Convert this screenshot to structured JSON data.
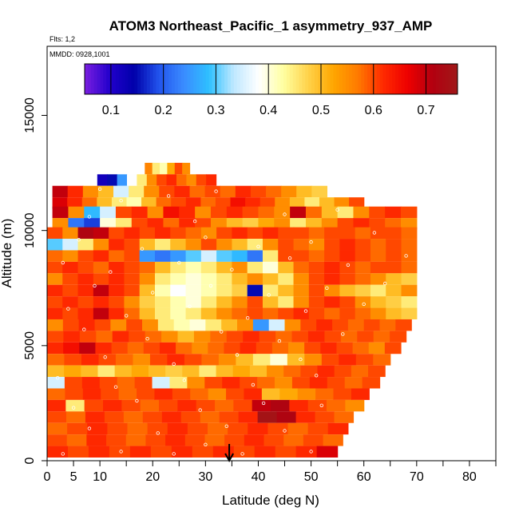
{
  "chart_data": {
    "type": "heatmap",
    "title": "ATOM3 Northeast_Pacific_1 asymmetry_937_AMP",
    "subtitle_flights": "Flts: 1,2",
    "subtitle_dates": "MMDD: 0928,1001",
    "xlabel": "Latitude (deg N)",
    "ylabel": "Altitude (m)",
    "xlim": [
      0,
      85
    ],
    "ylim": [
      0,
      18000
    ],
    "x_ticks": [
      0,
      5,
      10,
      20,
      30,
      40,
      50,
      60,
      70,
      80
    ],
    "x_minor_ticks": [
      15,
      25,
      35,
      45,
      55,
      65,
      75,
      85
    ],
    "y_ticks": [
      0,
      5000,
      10000,
      15000
    ],
    "colorbar": {
      "vmin": 0.05,
      "vmax": 0.76,
      "ticks": [
        0.1,
        0.2,
        0.3,
        0.4,
        0.5,
        0.6,
        0.7
      ],
      "tick_labels": [
        "0.1",
        "0.2",
        "0.3",
        "0.4",
        "0.5",
        "0.6",
        "0.7"
      ],
      "colors": [
        "#7a1fe0",
        "#2200cc",
        "#0000aa",
        "#2255ee",
        "#3a8cff",
        "#2ec0ff",
        "#bfe8ff",
        "#ffffff",
        "#ffffa0",
        "#ffd24a",
        "#ffa600",
        "#ff7a00",
        "#ff2a00",
        "#ee0000",
        "#b20010",
        "#a01818"
      ]
    },
    "marker": {
      "x": 34.5,
      "label": "arrow"
    },
    "layers": [
      {
        "alt": 12700,
        "xmin": 18.5,
        "xmax": 27,
        "values": [
          0.56,
          0.45,
          0.42,
          0.52,
          0.6,
          0.55
        ]
      },
      {
        "alt": 12200,
        "xmin": 9.5,
        "xmax": 32,
        "values": [
          0.12,
          0.15,
          0.25,
          0.38,
          0.45,
          0.55,
          0.6,
          0.62,
          0.58,
          0.55,
          0.6,
          0.62
        ]
      },
      {
        "alt": 11700,
        "xmin": 1,
        "xmax": 53,
        "values": [
          0.7,
          0.62,
          0.55,
          0.5,
          0.35,
          0.45,
          0.55,
          0.6,
          0.62,
          0.58,
          0.6,
          0.58,
          0.62,
          0.6,
          0.58,
          0.55,
          0.5,
          0.48
        ]
      },
      {
        "alt": 11200,
        "xmin": 1,
        "xmax": 60,
        "values": [
          0.68,
          0.62,
          0.58,
          0.5,
          0.45,
          0.42,
          0.5,
          0.58,
          0.6,
          0.62,
          0.58,
          0.6,
          0.65,
          0.62,
          0.6,
          0.55,
          0.5,
          0.45,
          0.5,
          0.55,
          0.6
        ]
      },
      {
        "alt": 10800,
        "xmin": 1,
        "xmax": 70,
        "values": [
          0.7,
          0.55,
          0.28,
          0.35,
          0.6,
          0.62,
          0.55,
          0.65,
          0.62,
          0.55,
          0.6,
          0.62,
          0.6,
          0.58,
          0.55,
          0.7,
          0.58,
          0.5,
          0.45,
          0.55,
          0.6,
          0.62,
          0.6
        ]
      },
      {
        "alt": 10300,
        "xmin": 1,
        "xmax": 70,
        "values": [
          0.55,
          0.22,
          0.18,
          0.4,
          0.45,
          0.6,
          0.62,
          0.58,
          0.62,
          0.6,
          0.55,
          0.5,
          0.48,
          0.52,
          0.55,
          0.45,
          0.5,
          0.55,
          0.6,
          0.62,
          0.6,
          0.58,
          0.55
        ]
      },
      {
        "alt": 9900,
        "xmin": 0,
        "xmax": 70,
        "values": [
          0.6,
          0.55,
          0.72,
          0.7,
          0.6,
          0.62,
          0.6,
          0.62,
          0.6,
          0.58,
          0.55,
          0.6,
          0.62,
          0.6,
          0.62,
          0.6,
          0.6,
          0.58,
          0.6,
          0.6,
          0.58,
          0.6,
          0.6,
          0.58
        ]
      },
      {
        "alt": 9400,
        "xmin": 0,
        "xmax": 70,
        "values": [
          0.3,
          0.35,
          0.45,
          0.55,
          0.62,
          0.6,
          0.5,
          0.45,
          0.5,
          0.55,
          0.6,
          0.55,
          0.5,
          0.45,
          0.55,
          0.6,
          0.58,
          0.55,
          0.6,
          0.62,
          0.6,
          0.58,
          0.6,
          0.58
        ]
      },
      {
        "alt": 8900,
        "xmin": 0,
        "xmax": 70,
        "values": [
          0.58,
          0.55,
          0.6,
          0.62,
          0.58,
          0.6,
          0.25,
          0.22,
          0.25,
          0.3,
          0.35,
          0.3,
          0.28,
          0.22,
          0.45,
          0.6,
          0.6,
          0.58,
          0.6,
          0.62,
          0.6,
          0.58,
          0.6,
          0.58
        ]
      },
      {
        "alt": 8400,
        "xmin": 0,
        "xmax": 70,
        "values": [
          0.6,
          0.62,
          0.6,
          0.58,
          0.62,
          0.6,
          0.58,
          0.5,
          0.45,
          0.42,
          0.45,
          0.5,
          0.55,
          0.45,
          0.4,
          0.5,
          0.58,
          0.6,
          0.62,
          0.6,
          0.58,
          0.6,
          0.6,
          0.58
        ]
      },
      {
        "alt": 7900,
        "xmin": 0,
        "xmax": 70,
        "values": [
          0.55,
          0.6,
          0.62,
          0.6,
          0.62,
          0.6,
          0.55,
          0.45,
          0.42,
          0.4,
          0.42,
          0.45,
          0.5,
          0.55,
          0.5,
          0.45,
          0.55,
          0.6,
          0.62,
          0.6,
          0.58,
          0.55,
          0.5,
          0.48
        ]
      },
      {
        "alt": 7400,
        "xmin": 0,
        "xmax": 70,
        "values": [
          0.62,
          0.6,
          0.62,
          0.7,
          0.62,
          0.6,
          0.5,
          0.42,
          0.38,
          0.4,
          0.42,
          0.45,
          0.48,
          0.15,
          0.45,
          0.5,
          0.55,
          0.6,
          0.55,
          0.5,
          0.48,
          0.45,
          0.5,
          0.55
        ]
      },
      {
        "alt": 6900,
        "xmin": 0,
        "xmax": 70,
        "values": [
          0.6,
          0.62,
          0.6,
          0.62,
          0.6,
          0.55,
          0.48,
          0.45,
          0.42,
          0.4,
          0.45,
          0.5,
          0.55,
          0.6,
          0.5,
          0.45,
          0.55,
          0.6,
          0.62,
          0.6,
          0.55,
          0.5,
          0.48,
          0.45
        ]
      },
      {
        "alt": 6400,
        "xmin": 0,
        "xmax": 70,
        "values": [
          0.62,
          0.6,
          0.62,
          0.7,
          0.62,
          0.58,
          0.5,
          0.45,
          0.42,
          0.45,
          0.5,
          0.55,
          0.58,
          0.6,
          0.58,
          0.6,
          0.62,
          0.6,
          0.58,
          0.6,
          0.58,
          0.55,
          0.5,
          0.48
        ]
      },
      {
        "alt": 5900,
        "xmin": 0,
        "xmax": 69,
        "values": [
          0.55,
          0.6,
          0.62,
          0.6,
          0.55,
          0.6,
          0.55,
          0.45,
          0.42,
          0.4,
          0.45,
          0.5,
          0.55,
          0.25,
          0.35,
          0.55,
          0.6,
          0.62,
          0.6,
          0.58,
          0.6,
          0.58,
          0.6
        ]
      },
      {
        "alt": 5400,
        "xmin": 0,
        "xmax": 68,
        "values": [
          0.6,
          0.62,
          0.6,
          0.58,
          0.62,
          0.6,
          0.58,
          0.55,
          0.5,
          0.55,
          0.58,
          0.6,
          0.62,
          0.6,
          0.58,
          0.6,
          0.62,
          0.6,
          0.58,
          0.6,
          0.58,
          0.6
        ]
      },
      {
        "alt": 4900,
        "xmin": 0,
        "xmax": 67,
        "values": [
          0.62,
          0.65,
          0.7,
          0.62,
          0.6,
          0.58,
          0.6,
          0.62,
          0.58,
          0.55,
          0.58,
          0.6,
          0.62,
          0.6,
          0.58,
          0.55,
          0.6,
          0.62,
          0.6,
          0.58,
          0.55,
          0.6
        ]
      },
      {
        "alt": 4400,
        "xmin": 0,
        "xmax": 65,
        "values": [
          0.58,
          0.6,
          0.62,
          0.6,
          0.58,
          0.55,
          0.6,
          0.62,
          0.6,
          0.58,
          0.55,
          0.5,
          0.45,
          0.4,
          0.5,
          0.55,
          0.6,
          0.62,
          0.6,
          0.58
        ]
      },
      {
        "alt": 3900,
        "xmin": 0,
        "xmax": 64,
        "values": [
          0.5,
          0.52,
          0.5,
          0.45,
          0.5,
          0.52,
          0.5,
          0.48,
          0.5,
          0.45,
          0.5,
          0.52,
          0.5,
          0.55,
          0.58,
          0.6,
          0.62,
          0.6,
          0.58,
          0.6
        ]
      },
      {
        "alt": 3400,
        "xmin": 0,
        "xmax": 63,
        "values": [
          0.35,
          0.6,
          0.62,
          0.6,
          0.58,
          0.6,
          0.35,
          0.45,
          0.55,
          0.6,
          0.62,
          0.6,
          0.58,
          0.55,
          0.6,
          0.62,
          0.6,
          0.58,
          0.6
        ]
      },
      {
        "alt": 2900,
        "xmin": 0,
        "xmax": 61,
        "values": [
          0.58,
          0.6,
          0.62,
          0.6,
          0.58,
          0.6,
          0.62,
          0.6,
          0.58,
          0.55,
          0.6,
          0.62,
          0.5,
          0.52,
          0.55,
          0.58,
          0.6,
          0.62
        ]
      },
      {
        "alt": 2400,
        "xmin": 0,
        "xmax": 60,
        "values": [
          0.62,
          0.45,
          0.6,
          0.62,
          0.6,
          0.58,
          0.6,
          0.62,
          0.6,
          0.58,
          0.6,
          0.7,
          0.72,
          0.62,
          0.6,
          0.58,
          0.55
        ]
      },
      {
        "alt": 1900,
        "xmin": 0,
        "xmax": 58,
        "values": [
          0.6,
          0.58,
          0.62,
          0.6,
          0.58,
          0.6,
          0.62,
          0.6,
          0.58,
          0.6,
          0.62,
          0.75,
          0.72,
          0.62,
          0.6,
          0.58
        ]
      },
      {
        "alt": 1400,
        "xmin": 0,
        "xmax": 57,
        "values": [
          0.58,
          0.6,
          0.62,
          0.6,
          0.58,
          0.6,
          0.62,
          0.6,
          0.58,
          0.6,
          0.62,
          0.6,
          0.58,
          0.6,
          0.62
        ]
      },
      {
        "alt": 900,
        "xmin": 0,
        "xmax": 56,
        "values": [
          0.6,
          0.58,
          0.62,
          0.6,
          0.58,
          0.6,
          0.62,
          0.6,
          0.58,
          0.6,
          0.62,
          0.6,
          0.58,
          0.6,
          0.58
        ]
      },
      {
        "alt": 400,
        "xmin": 0,
        "xmax": 55,
        "values": [
          0.62,
          0.6,
          0.62,
          0.6,
          0.62,
          0.6,
          0.62,
          0.6,
          0.62,
          0.6,
          0.62,
          0.6,
          0.62,
          0.68
        ]
      }
    ],
    "samples": [
      [
        10,
        11800
      ],
      [
        14,
        11300
      ],
      [
        23,
        11500
      ],
      [
        32,
        11700
      ],
      [
        8,
        10600
      ],
      [
        28,
        10400
      ],
      [
        45,
        10700
      ],
      [
        55,
        10900
      ],
      [
        6,
        9600
      ],
      [
        18,
        9200
      ],
      [
        30,
        9700
      ],
      [
        40,
        9300
      ],
      [
        50,
        9500
      ],
      [
        62,
        9900
      ],
      [
        3,
        8600
      ],
      [
        12,
        8200
      ],
      [
        25,
        8600
      ],
      [
        35,
        8300
      ],
      [
        46,
        8800
      ],
      [
        57,
        8500
      ],
      [
        68,
        8900
      ],
      [
        9,
        7600
      ],
      [
        20,
        7300
      ],
      [
        31,
        7600
      ],
      [
        42,
        7200
      ],
      [
        53,
        7500
      ],
      [
        64,
        7700
      ],
      [
        4,
        6600
      ],
      [
        15,
        6300
      ],
      [
        27,
        6700
      ],
      [
        38,
        6200
      ],
      [
        49,
        6500
      ],
      [
        60,
        6800
      ],
      [
        7,
        5700
      ],
      [
        19,
        5300
      ],
      [
        33,
        5600
      ],
      [
        44,
        5200
      ],
      [
        56,
        5500
      ],
      [
        11,
        4500
      ],
      [
        24,
        4200
      ],
      [
        36,
        4600
      ],
      [
        48,
        4400
      ],
      [
        2,
        3600
      ],
      [
        13,
        3200
      ],
      [
        26,
        3500
      ],
      [
        39,
        3300
      ],
      [
        51,
        3700
      ],
      [
        5,
        2300
      ],
      [
        17,
        2600
      ],
      [
        29,
        2200
      ],
      [
        41,
        2500
      ],
      [
        52,
        2400
      ],
      [
        8,
        1400
      ],
      [
        21,
        1200
      ],
      [
        34,
        1500
      ],
      [
        45,
        1300
      ],
      [
        3,
        300
      ],
      [
        14,
        400
      ],
      [
        24,
        300
      ],
      [
        37,
        300
      ],
      [
        50,
        400
      ],
      [
        30,
        700
      ]
    ]
  }
}
